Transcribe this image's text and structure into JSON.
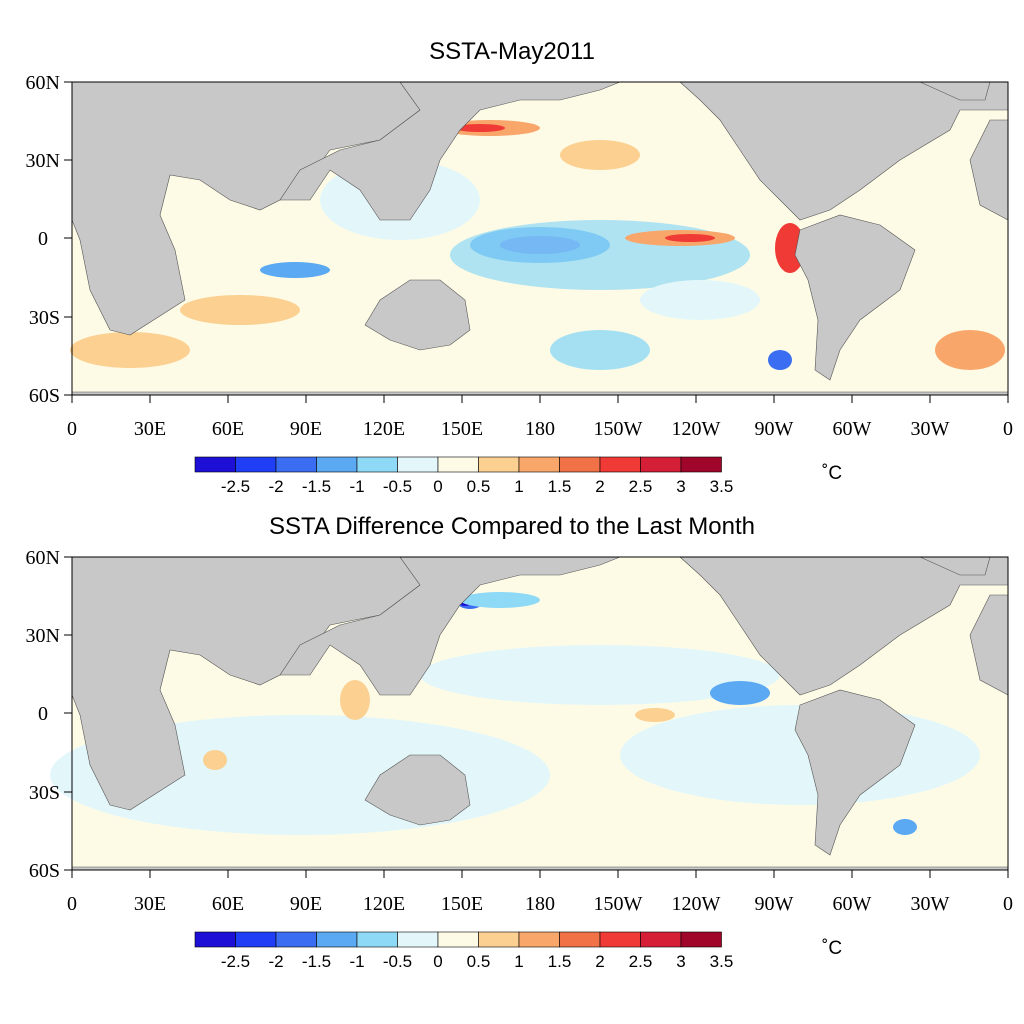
{
  "panels": [
    {
      "title": "SSTA-May2011",
      "unit": "˚C"
    },
    {
      "title": "SSTA Difference Compared to the Last Month",
      "unit": "˚C"
    }
  ],
  "axes": {
    "lat_labels": [
      "60N",
      "30N",
      "0",
      "30S",
      "60S"
    ],
    "lon_labels": [
      "0",
      "30E",
      "60E",
      "90E",
      "120E",
      "150E",
      "180",
      "150W",
      "120W",
      "90W",
      "60W",
      "30W",
      "0"
    ]
  },
  "colorbar": {
    "labels": [
      "-2.5",
      "-2",
      "-1.5",
      "-1",
      "-0.5",
      "0",
      "0.5",
      "1",
      "1.5",
      "2",
      "2.5",
      "3",
      "3.5"
    ],
    "colors": [
      "#1e0fd6",
      "#1f3ef5",
      "#3b6df2",
      "#5aa9f2",
      "#8ed9f5",
      "#e3f7fb",
      "#fdfbe6",
      "#fbd091",
      "#f8a66a",
      "#f27248",
      "#ef3a36",
      "#d41f36",
      "#a0052a"
    ]
  },
  "colors": {
    "land": "#c8c8c8",
    "ocean_neutral": "#fdfbe6"
  }
}
